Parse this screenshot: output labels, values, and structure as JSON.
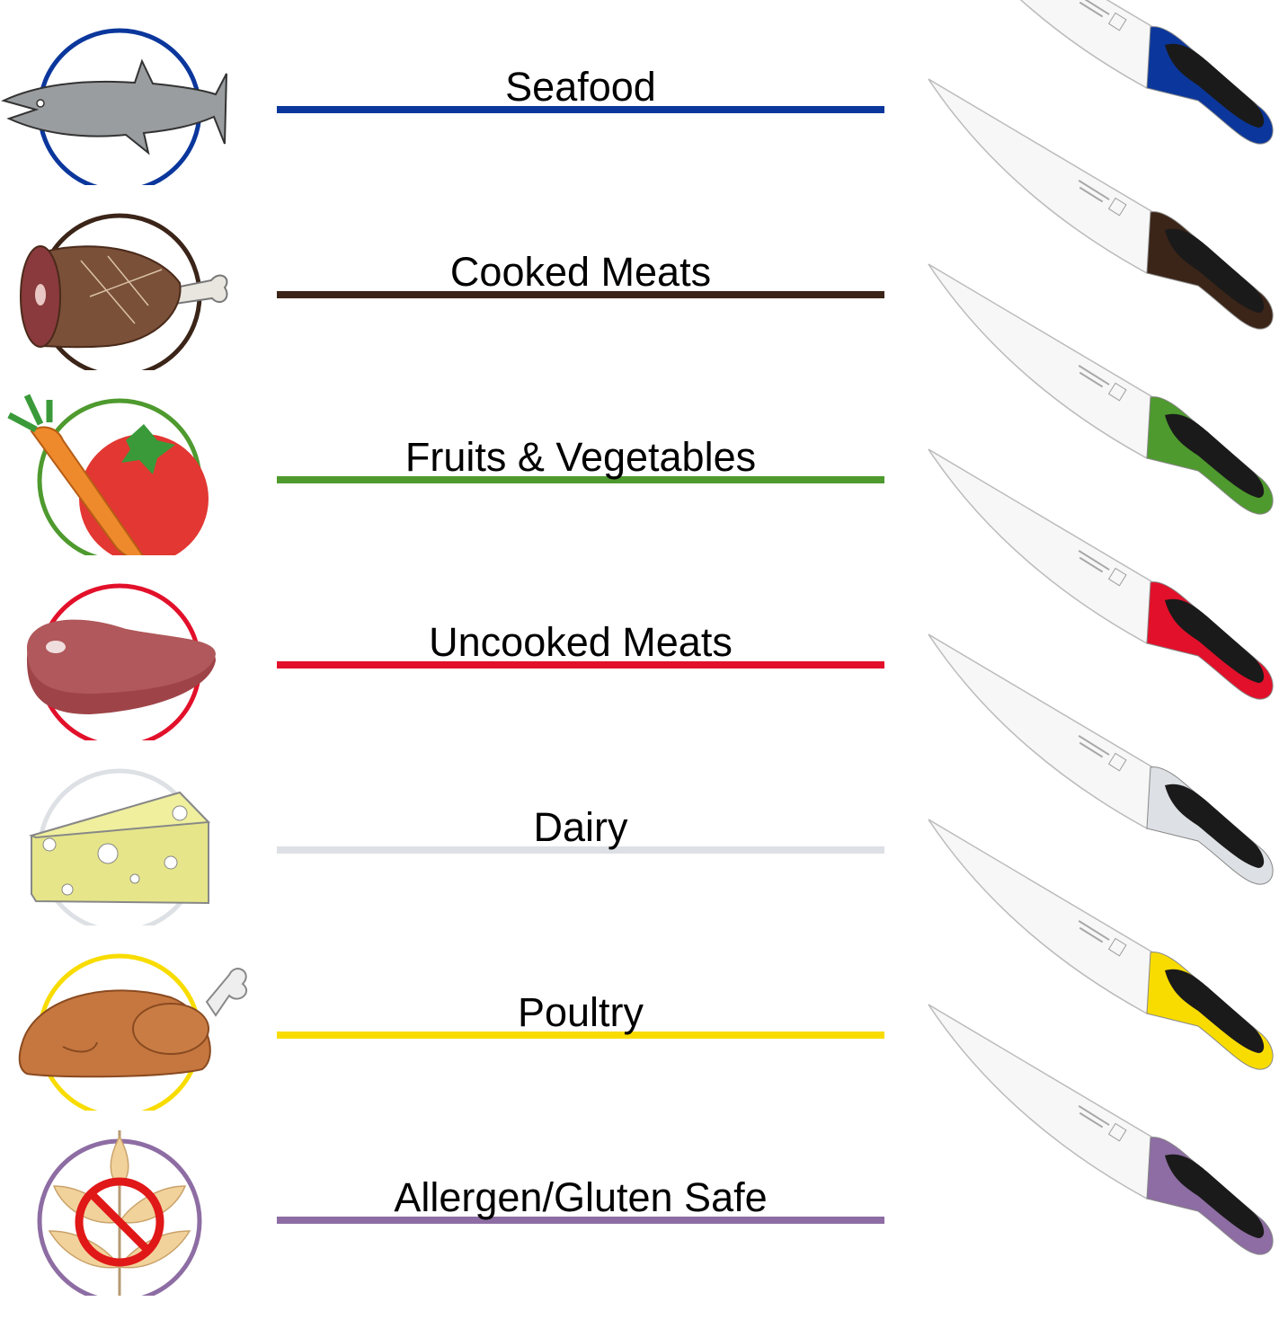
{
  "rows": [
    {
      "label": "Seafood",
      "color": "#0b379c",
      "icon": "fish-icon"
    },
    {
      "label": "Cooked Meats",
      "color": "#3b2418",
      "icon": "ham-icon"
    },
    {
      "label": "Fruits & Vegetables",
      "color": "#4e9a2e",
      "icon": "tomato-carrot-icon"
    },
    {
      "label": "Uncooked Meats",
      "color": "#e2102a",
      "icon": "raw-steak-icon"
    },
    {
      "label": "Dairy",
      "color": "#dde0e4",
      "icon": "cheese-icon"
    },
    {
      "label": "Poultry",
      "color": "#f8dc00",
      "icon": "roast-chicken-icon"
    },
    {
      "label": "Allergen/Gluten Safe",
      "color": "#8d6da3",
      "icon": "no-gluten-icon"
    }
  ]
}
